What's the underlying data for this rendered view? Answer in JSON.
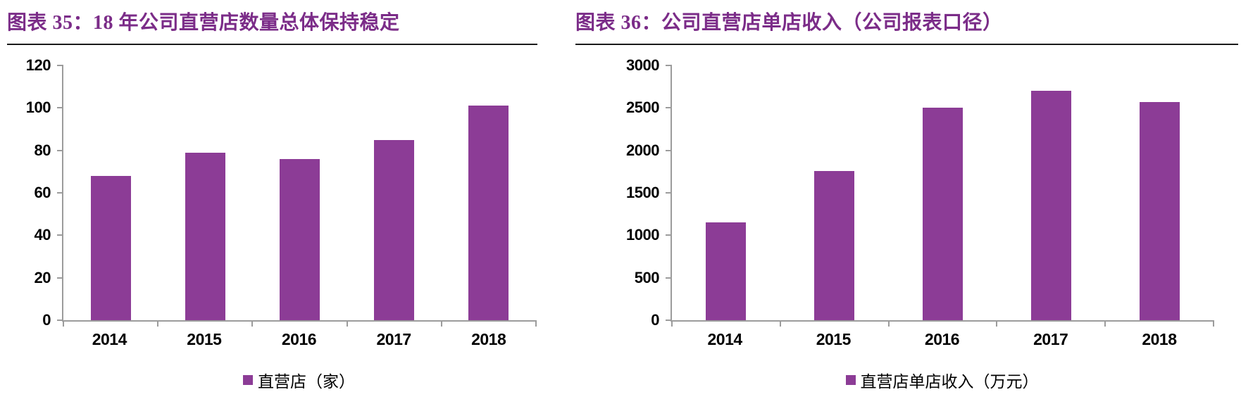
{
  "colors": {
    "bar": "#8c3c96",
    "title": "#7b2c88",
    "axis": "#9c9c9c",
    "rule": "#1a1a1a",
    "text": "#000000"
  },
  "chart_data": [
    {
      "type": "bar",
      "title": "图表 35：18 年公司直营店数量总体保持稳定",
      "categories": [
        "2014",
        "2015",
        "2016",
        "2017",
        "2018"
      ],
      "values": [
        68,
        79,
        76,
        85,
        101
      ],
      "ylim": [
        0,
        120
      ],
      "yticks": [
        0,
        20,
        40,
        60,
        80,
        100,
        120
      ],
      "xlabel": "",
      "ylabel": "",
      "grid": false,
      "legend": [
        "直营店（家）"
      ],
      "legend_position": "bottom"
    },
    {
      "type": "bar",
      "title": "图表 36：公司直营店单店收入（公司报表口径）",
      "categories": [
        "2014",
        "2015",
        "2016",
        "2017",
        "2018"
      ],
      "values": [
        1150,
        1760,
        2500,
        2700,
        2570
      ],
      "ylim": [
        0,
        3000
      ],
      "yticks": [
        0,
        500,
        1000,
        1500,
        2000,
        2500,
        3000
      ],
      "xlabel": "",
      "ylabel": "",
      "grid": false,
      "legend": [
        "直营店单店收入（万元）"
      ],
      "legend_position": "bottom"
    }
  ]
}
